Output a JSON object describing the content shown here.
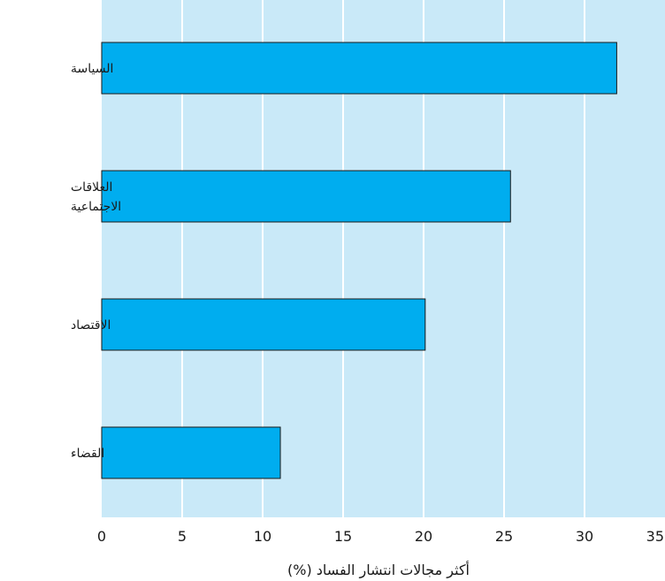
{
  "chart_data": {
    "type": "bar",
    "orientation": "horizontal",
    "title": "",
    "xlabel": "أكثر مجالات انتشار الفساد (%)",
    "ylabel": "",
    "categories": [
      [
        "السياسة"
      ],
      [
        "العلاقات",
        "الاجتماعية"
      ],
      [
        "الاقتصاد"
      ],
      [
        "القضاء"
      ]
    ],
    "values": [
      32,
      25.4,
      20.1,
      11.1
    ],
    "xlim": [
      0,
      35
    ],
    "xticks": [
      "0",
      "5",
      "10",
      "15",
      "20",
      "25",
      "30",
      "35"
    ],
    "grid": true,
    "legend": "none",
    "colors": {
      "plot_background": "#c9e9f8",
      "bar_fill": "#00adef",
      "bar_stroke": "#1a1a1a",
      "grid": "#ffffff",
      "text": "#1a1a1a"
    }
  }
}
